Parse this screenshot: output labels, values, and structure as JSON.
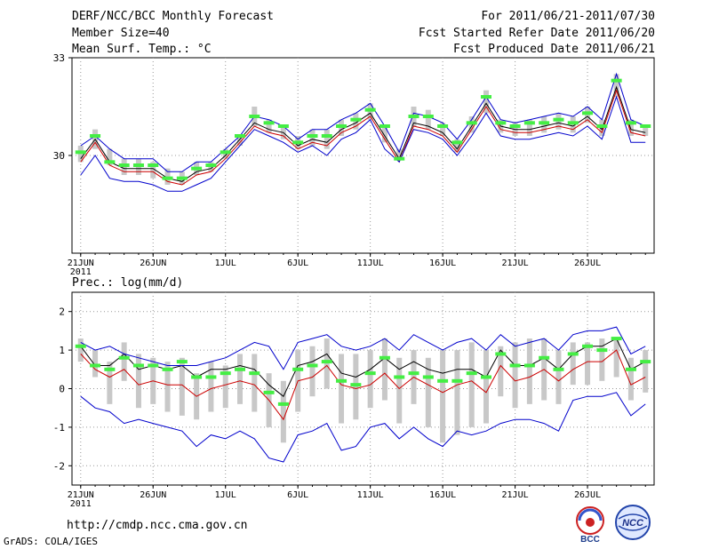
{
  "header": {
    "title": "DERF/NCC/BCC Monthly Forecast",
    "member_size": "Member Size=40",
    "temp_label": "Mean Surf. Temp.: °C",
    "period": "For 2011/06/21-2011/07/30",
    "fcst_started": "Fcst Started Refer Date 2011/06/20",
    "fcst_produced": "Fcst Produced Date 2011/06/21"
  },
  "footer": {
    "url": "http://cmdp.ncc.cma.gov.cn",
    "credit": "GrADS: COLA/IGES",
    "logo_left_text": "BCC",
    "logo_right_text": "NCC"
  },
  "colors": {
    "ensemble_line": "#000000",
    "median_line": "#cc0000",
    "bound_line": "#0000cc",
    "observation_bar": "#44ee44",
    "member_box": "#c8c8c8",
    "grid": "#999999"
  },
  "chart_data": [
    {
      "type": "line",
      "title": "Mean Surf. Temp.: °C",
      "x": [
        1,
        2,
        3,
        4,
        5,
        6,
        7,
        8,
        9,
        10,
        11,
        12,
        13,
        14,
        15,
        16,
        17,
        18,
        19,
        20,
        21,
        22,
        23,
        24,
        25,
        26,
        27,
        28,
        29,
        30,
        31,
        32,
        33,
        34,
        35,
        36,
        37,
        38,
        39,
        40
      ],
      "xticks": [
        {
          "x": 1,
          "label": "21JUN",
          "sub": "2011"
        },
        {
          "x": 6,
          "label": "26JUN"
        },
        {
          "x": 11,
          "label": "1JUL"
        },
        {
          "x": 16,
          "label": "6JUL"
        },
        {
          "x": 21,
          "label": "11JUL"
        },
        {
          "x": 26,
          "label": "16JUL"
        },
        {
          "x": 31,
          "label": "21JUL"
        },
        {
          "x": 36,
          "label": "26JUL"
        }
      ],
      "xlim": [
        0.4,
        40.6
      ],
      "ylim": [
        27,
        33
      ],
      "yticks": [
        30,
        33
      ],
      "series": [
        {
          "name": "ensemble mean",
          "color": "#000000",
          "values": [
            29.9,
            30.5,
            29.8,
            29.6,
            29.6,
            29.6,
            29.3,
            29.2,
            29.5,
            29.6,
            30.0,
            30.5,
            31.0,
            30.8,
            30.7,
            30.3,
            30.5,
            30.4,
            30.8,
            31.0,
            31.3,
            30.6,
            29.9,
            31.0,
            30.9,
            30.7,
            30.2,
            30.9,
            31.6,
            30.9,
            30.8,
            30.8,
            30.9,
            31.0,
            30.9,
            31.2,
            30.8,
            32.1,
            30.8,
            30.7
          ]
        },
        {
          "name": "median",
          "color": "#cc0000",
          "values": [
            29.8,
            30.4,
            29.7,
            29.5,
            29.5,
            29.5,
            29.2,
            29.1,
            29.4,
            29.5,
            29.9,
            30.4,
            30.9,
            30.7,
            30.6,
            30.2,
            30.4,
            30.3,
            30.7,
            30.9,
            31.2,
            30.5,
            29.8,
            30.9,
            30.8,
            30.6,
            30.1,
            30.8,
            31.5,
            30.8,
            30.7,
            30.7,
            30.8,
            30.9,
            30.8,
            31.1,
            30.7,
            32.0,
            30.7,
            30.6
          ]
        },
        {
          "name": "upper bound",
          "color": "#0000cc",
          "values": [
            30.3,
            30.6,
            30.2,
            29.9,
            29.9,
            29.9,
            29.5,
            29.5,
            29.8,
            29.8,
            30.2,
            30.6,
            31.2,
            31.1,
            30.9,
            30.5,
            30.8,
            30.8,
            31.1,
            31.3,
            31.6,
            30.9,
            30.1,
            31.3,
            31.2,
            31.0,
            30.5,
            31.1,
            31.8,
            31.1,
            31.0,
            31.1,
            31.2,
            31.3,
            31.2,
            31.5,
            31.1,
            32.5,
            31.1,
            30.9
          ]
        },
        {
          "name": "lower bound",
          "color": "#0000cc",
          "values": [
            29.4,
            30.0,
            29.3,
            29.2,
            29.2,
            29.1,
            28.9,
            28.9,
            29.1,
            29.3,
            29.8,
            30.3,
            30.8,
            30.6,
            30.4,
            30.1,
            30.3,
            30.0,
            30.5,
            30.7,
            31.1,
            30.2,
            29.8,
            30.8,
            30.7,
            30.5,
            30.0,
            30.6,
            31.3,
            30.6,
            30.5,
            30.5,
            30.6,
            30.7,
            30.6,
            30.9,
            30.5,
            31.8,
            30.4,
            30.4
          ]
        }
      ],
      "observation": [
        30.1,
        30.6,
        29.8,
        29.7,
        29.7,
        29.7,
        29.3,
        29.3,
        29.6,
        29.7,
        30.1,
        30.6,
        31.2,
        31.0,
        30.9,
        30.4,
        30.6,
        30.6,
        30.9,
        31.1,
        31.4,
        30.9,
        29.9,
        31.2,
        31.2,
        30.9,
        30.4,
        31.0,
        31.8,
        31.0,
        30.9,
        31.0,
        31.0,
        31.1,
        31.0,
        31.3,
        30.9,
        32.3,
        31.0,
        30.9
      ],
      "member_range": [
        [
          29.8,
          30.3
        ],
        [
          30.2,
          30.8
        ],
        [
          29.7,
          30.2
        ],
        [
          29.4,
          29.9
        ],
        [
          29.4,
          29.9
        ],
        [
          29.3,
          29.8
        ],
        [
          29.1,
          29.6
        ],
        [
          29.1,
          29.5
        ],
        [
          29.4,
          29.8
        ],
        [
          29.5,
          29.8
        ],
        [
          29.9,
          30.2
        ],
        [
          30.3,
          30.6
        ],
        [
          30.9,
          31.5
        ],
        [
          30.7,
          31.1
        ],
        [
          30.5,
          30.9
        ],
        [
          30.2,
          30.6
        ],
        [
          30.3,
          30.8
        ],
        [
          30.2,
          30.8
        ],
        [
          30.6,
          31.1
        ],
        [
          30.8,
          31.3
        ],
        [
          31.1,
          31.6
        ],
        [
          30.4,
          30.9
        ],
        [
          29.9,
          30.2
        ],
        [
          30.9,
          31.5
        ],
        [
          30.8,
          31.4
        ],
        [
          30.6,
          31.0
        ],
        [
          30.1,
          30.5
        ],
        [
          30.7,
          31.2
        ],
        [
          31.3,
          32.0
        ],
        [
          30.7,
          31.1
        ],
        [
          30.6,
          31.0
        ],
        [
          30.6,
          31.1
        ],
        [
          30.7,
          31.2
        ],
        [
          30.8,
          31.3
        ],
        [
          30.7,
          31.2
        ],
        [
          31.0,
          31.5
        ],
        [
          30.6,
          31.1
        ],
        [
          31.8,
          32.5
        ],
        [
          30.6,
          31.1
        ],
        [
          30.6,
          30.9
        ]
      ]
    },
    {
      "type": "line",
      "title": "Prec.: log(mm/d)",
      "x": [
        1,
        2,
        3,
        4,
        5,
        6,
        7,
        8,
        9,
        10,
        11,
        12,
        13,
        14,
        15,
        16,
        17,
        18,
        19,
        20,
        21,
        22,
        23,
        24,
        25,
        26,
        27,
        28,
        29,
        30,
        31,
        32,
        33,
        34,
        35,
        36,
        37,
        38,
        39,
        40
      ],
      "xticks": [
        {
          "x": 1,
          "label": "21JUN",
          "sub": "2011"
        },
        {
          "x": 6,
          "label": "26JUN"
        },
        {
          "x": 11,
          "label": "1JUL"
        },
        {
          "x": 16,
          "label": "6JUL"
        },
        {
          "x": 21,
          "label": "11JUL"
        },
        {
          "x": 26,
          "label": "16JUL"
        },
        {
          "x": 31,
          "label": "21JUL"
        },
        {
          "x": 36,
          "label": "26JUL"
        }
      ],
      "xlim": [
        0.4,
        40.6
      ],
      "ylim": [
        -2.5,
        2.5
      ],
      "yticks": [
        2,
        1,
        0,
        -1,
        -2
      ],
      "series": [
        {
          "name": "ensemble mean",
          "color": "#000000",
          "values": [
            1.1,
            0.6,
            0.6,
            0.9,
            0.5,
            0.6,
            0.5,
            0.6,
            0.3,
            0.5,
            0.5,
            0.6,
            0.5,
            0.1,
            -0.2,
            0.6,
            0.7,
            0.9,
            0.4,
            0.3,
            0.5,
            0.8,
            0.5,
            0.7,
            0.5,
            0.4,
            0.5,
            0.5,
            0.3,
            1.0,
            0.6,
            0.6,
            0.8,
            0.5,
            0.9,
            1.1,
            1.1,
            1.3,
            0.5,
            0.7
          ]
        },
        {
          "name": "median",
          "color": "#cc0000",
          "values": [
            0.9,
            0.5,
            0.3,
            0.5,
            0.1,
            0.2,
            0.1,
            0.1,
            -0.2,
            0.0,
            0.1,
            0.2,
            0.1,
            -0.3,
            -0.8,
            0.2,
            0.3,
            0.6,
            0.1,
            0.0,
            0.1,
            0.4,
            0.0,
            0.3,
            0.1,
            -0.1,
            0.1,
            0.2,
            -0.1,
            0.6,
            0.2,
            0.3,
            0.5,
            0.2,
            0.5,
            0.7,
            0.7,
            1.0,
            0.1,
            0.3
          ]
        },
        {
          "name": "upper bound",
          "color": "#0000cc",
          "values": [
            1.2,
            1.0,
            1.1,
            0.9,
            0.8,
            0.7,
            0.6,
            0.6,
            0.6,
            0.7,
            0.8,
            1.0,
            1.2,
            1.1,
            0.5,
            1.2,
            1.3,
            1.4,
            1.1,
            1.0,
            1.1,
            1.3,
            1.0,
            1.4,
            1.2,
            1.0,
            1.2,
            1.3,
            1.0,
            1.4,
            1.1,
            1.2,
            1.3,
            1.0,
            1.4,
            1.5,
            1.5,
            1.6,
            0.9,
            1.1
          ]
        },
        {
          "name": "lower bound",
          "color": "#0000cc",
          "values": [
            -0.2,
            -0.5,
            -0.6,
            -0.9,
            -0.8,
            -0.9,
            -1.0,
            -1.1,
            -1.5,
            -1.2,
            -1.3,
            -1.1,
            -1.3,
            -1.8,
            -1.9,
            -1.2,
            -1.1,
            -0.9,
            -1.6,
            -1.5,
            -1.0,
            -0.9,
            -1.3,
            -1.0,
            -1.3,
            -1.5,
            -1.1,
            -1.2,
            -1.1,
            -0.9,
            -0.8,
            -0.8,
            -0.9,
            -1.1,
            -0.3,
            -0.2,
            -0.2,
            -0.1,
            -0.7,
            -0.4
          ]
        }
      ],
      "observation": [
        1.1,
        0.6,
        0.5,
        0.8,
        0.6,
        0.6,
        0.5,
        0.7,
        0.3,
        0.3,
        0.4,
        0.5,
        0.4,
        -0.1,
        -0.4,
        0.5,
        0.6,
        0.7,
        0.2,
        0.1,
        0.4,
        0.8,
        0.3,
        0.4,
        0.3,
        0.2,
        0.2,
        0.4,
        0.3,
        0.9,
        0.6,
        0.6,
        0.8,
        0.5,
        0.9,
        1.1,
        1.0,
        1.3,
        0.5,
        0.7
      ],
      "member_range": [
        [
          0.7,
          1.3
        ],
        [
          0.3,
          1.0
        ],
        [
          -0.4,
          0.7
        ],
        [
          0.2,
          1.2
        ],
        [
          -0.5,
          0.9
        ],
        [
          -0.4,
          0.8
        ],
        [
          -0.6,
          0.7
        ],
        [
          -0.7,
          0.8
        ],
        [
          -0.8,
          0.4
        ],
        [
          -0.6,
          0.7
        ],
        [
          -0.5,
          0.6
        ],
        [
          -0.4,
          0.9
        ],
        [
          -0.6,
          0.9
        ],
        [
          -1.0,
          0.4
        ],
        [
          -1.4,
          0.2
        ],
        [
          -0.6,
          1.0
        ],
        [
          -0.2,
          1.1
        ],
        [
          0.0,
          1.3
        ],
        [
          -0.9,
          0.9
        ],
        [
          -0.8,
          0.9
        ],
        [
          -0.5,
          1.0
        ],
        [
          -0.3,
          1.3
        ],
        [
          -0.9,
          0.8
        ],
        [
          -0.4,
          1.0
        ],
        [
          -1.0,
          0.8
        ],
        [
          -1.4,
          1.0
        ],
        [
          -1.2,
          1.0
        ],
        [
          -1.0,
          1.2
        ],
        [
          -0.9,
          1.0
        ],
        [
          -0.2,
          1.1
        ],
        [
          -0.5,
          1.2
        ],
        [
          -0.4,
          1.3
        ],
        [
          -0.3,
          1.3
        ],
        [
          -0.4,
          1.0
        ],
        [
          0.1,
          1.2
        ],
        [
          0.1,
          1.2
        ],
        [
          0.2,
          1.3
        ],
        [
          0.3,
          1.3
        ],
        [
          -0.3,
          0.8
        ],
        [
          -0.1,
          1.0
        ]
      ]
    }
  ]
}
